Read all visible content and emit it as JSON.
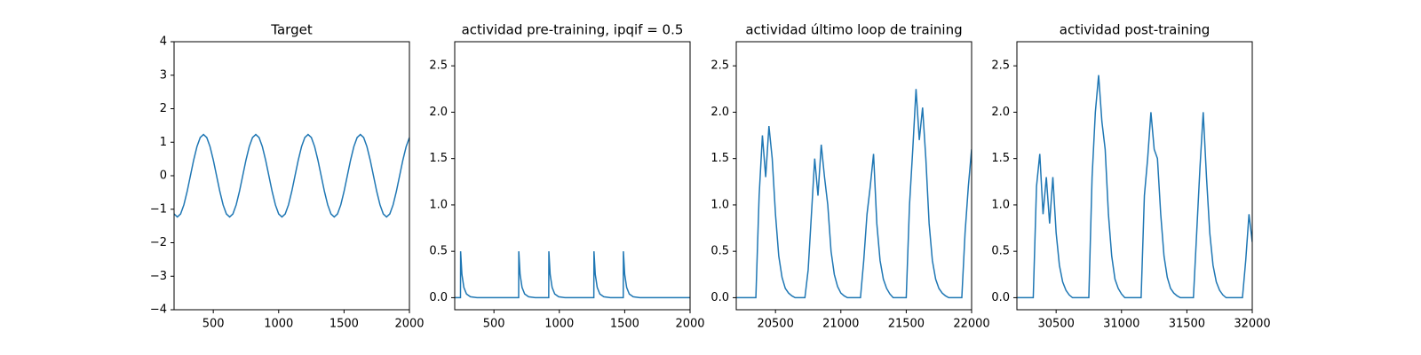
{
  "chart_data": [
    {
      "type": "line",
      "title": "Target",
      "color": "#1f77b4",
      "x": [
        200,
        225,
        250,
        275,
        300,
        325,
        350,
        375,
        400,
        425,
        450,
        475,
        500,
        525,
        550,
        575,
        600,
        625,
        650,
        675,
        700,
        725,
        750,
        775,
        800,
        825,
        850,
        875,
        900,
        925,
        950,
        975,
        1000,
        1025,
        1050,
        1075,
        1100,
        1125,
        1150,
        1175,
        1200,
        1225,
        1250,
        1275,
        1300,
        1325,
        1350,
        1375,
        1400,
        1425,
        1450,
        1475,
        1500,
        1525,
        1550,
        1575,
        1600,
        1625,
        1650,
        1675,
        1700,
        1725,
        1750,
        1775,
        1800,
        1825,
        1850,
        1875,
        1900,
        1925,
        1950,
        1975,
        2000
      ],
      "values": [
        -1.14,
        -1.23,
        -1.14,
        -0.87,
        -0.47,
        0,
        0.47,
        0.87,
        1.14,
        1.23,
        1.14,
        0.87,
        0.47,
        0,
        -0.47,
        -0.87,
        -1.14,
        -1.23,
        -1.14,
        -0.87,
        -0.47,
        0,
        0.47,
        0.87,
        1.14,
        1.23,
        1.14,
        0.87,
        0.47,
        0,
        -0.47,
        -0.87,
        -1.14,
        -1.23,
        -1.14,
        -0.87,
        -0.47,
        0,
        0.47,
        0.87,
        1.14,
        1.23,
        1.14,
        0.87,
        0.47,
        0,
        -0.47,
        -0.87,
        -1.14,
        -1.23,
        -1.14,
        -0.87,
        -0.47,
        0,
        0.47,
        0.87,
        1.14,
        1.23,
        1.14,
        0.87,
        0.47,
        0,
        -0.47,
        -0.87,
        -1.14,
        -1.23,
        -1.14,
        -0.87,
        -0.47,
        0,
        0.47,
        0.87,
        1.14
      ],
      "xlim": [
        200,
        2000
      ],
      "xticks": [
        500,
        1000,
        1500,
        2000
      ],
      "ylim": [
        -4,
        4
      ],
      "yticks": [
        {
          "value": -4,
          "label": "−4"
        },
        {
          "value": -3,
          "label": "−3"
        },
        {
          "value": -2,
          "label": "−2"
        },
        {
          "value": -1,
          "label": "−1"
        },
        0,
        1,
        2,
        3,
        4
      ]
    },
    {
      "type": "line",
      "title": "actividad pre-training, ipqif = 0.5",
      "color": "#1f77b4",
      "x": [
        200,
        244,
        245,
        255,
        270,
        290,
        320,
        370,
        689,
        690,
        700,
        715,
        735,
        765,
        815,
        919,
        920,
        930,
        945,
        965,
        995,
        1045,
        1264,
        1265,
        1275,
        1290,
        1310,
        1340,
        1390,
        1489,
        1490,
        1500,
        1515,
        1535,
        1565,
        1615,
        2000
      ],
      "values": [
        0,
        0,
        0.5,
        0.25,
        0.11,
        0.04,
        0.01,
        0,
        0,
        0.5,
        0.25,
        0.11,
        0.04,
        0.01,
        0,
        0,
        0.5,
        0.25,
        0.11,
        0.04,
        0.01,
        0,
        0,
        0.5,
        0.25,
        0.11,
        0.04,
        0.01,
        0,
        0,
        0.5,
        0.25,
        0.11,
        0.04,
        0.01,
        0,
        0
      ],
      "xlim": [
        200,
        2000
      ],
      "xticks": [
        500,
        1000,
        1500,
        2000
      ],
      "ylim": [
        -0.13,
        2.76
      ],
      "yticks": [
        {
          "value": 0,
          "label": "0.0"
        },
        0.5,
        {
          "value": 1,
          "label": "1.0"
        },
        1.5,
        {
          "value": 2,
          "label": "2.0"
        },
        2.5
      ]
    },
    {
      "type": "line",
      "title": "actividad último loop de training",
      "color": "#1f77b4",
      "x": [
        20200,
        20225,
        20250,
        20275,
        20300,
        20325,
        20350,
        20375,
        20400,
        20425,
        20450,
        20475,
        20500,
        20525,
        20550,
        20575,
        20600,
        20625,
        20650,
        20675,
        20700,
        20725,
        20750,
        20775,
        20800,
        20825,
        20850,
        20875,
        20900,
        20925,
        20950,
        20975,
        21000,
        21025,
        21050,
        21075,
        21100,
        21125,
        21150,
        21175,
        21200,
        21225,
        21250,
        21275,
        21300,
        21325,
        21350,
        21375,
        21400,
        21425,
        21450,
        21475,
        21500,
        21525,
        21550,
        21575,
        21600,
        21625,
        21650,
        21675,
        21700,
        21725,
        21750,
        21775,
        21800,
        21825,
        21850,
        21875,
        21900,
        21925,
        21950,
        21975,
        22000
      ],
      "values": [
        0,
        0,
        0,
        0,
        0,
        0,
        0,
        1.1,
        1.75,
        1.3,
        1.85,
        1.5,
        0.9,
        0.45,
        0.22,
        0.1,
        0.05,
        0.02,
        0,
        0,
        0,
        0,
        0.3,
        0.9,
        1.5,
        1.1,
        1.65,
        1.3,
        1.0,
        0.5,
        0.25,
        0.12,
        0.05,
        0.02,
        0,
        0,
        0,
        0,
        0,
        0.4,
        0.9,
        1.2,
        1.55,
        0.8,
        0.4,
        0.2,
        0.1,
        0.04,
        0,
        0,
        0,
        0,
        0,
        1.0,
        1.6,
        2.25,
        1.7,
        2.05,
        1.5,
        0.8,
        0.4,
        0.2,
        0.1,
        0.05,
        0.02,
        0,
        0,
        0,
        0,
        0,
        0.7,
        1.2,
        1.6
      ],
      "xlim": [
        20200,
        22000
      ],
      "xticks": [
        20500,
        21000,
        21500,
        22000
      ],
      "ylim": [
        -0.13,
        2.76
      ],
      "yticks": [
        {
          "value": 0,
          "label": "0.0"
        },
        0.5,
        {
          "value": 1,
          "label": "1.0"
        },
        1.5,
        {
          "value": 2,
          "label": "2.0"
        },
        2.5
      ]
    },
    {
      "type": "line",
      "title": "actividad post-training",
      "color": "#1f77b4",
      "x": [
        30200,
        30225,
        30250,
        30275,
        30300,
        30325,
        30350,
        30375,
        30400,
        30425,
        30450,
        30475,
        30500,
        30525,
        30550,
        30575,
        30600,
        30625,
        30650,
        30675,
        30700,
        30725,
        30750,
        30775,
        30800,
        30825,
        30850,
        30875,
        30900,
        30925,
        30950,
        30975,
        31000,
        31025,
        31050,
        31075,
        31100,
        31125,
        31150,
        31175,
        31200,
        31225,
        31250,
        31275,
        31300,
        31325,
        31350,
        31375,
        31400,
        31425,
        31450,
        31475,
        31500,
        31525,
        31550,
        31575,
        31600,
        31625,
        31650,
        31675,
        31700,
        31725,
        31750,
        31775,
        31800,
        31825,
        31850,
        31875,
        31900,
        31925,
        31950,
        31975,
        32000
      ],
      "values": [
        0,
        0,
        0,
        0,
        0,
        0,
        1.2,
        1.55,
        0.9,
        1.3,
        0.8,
        1.3,
        0.7,
        0.35,
        0.17,
        0.08,
        0.03,
        0,
        0,
        0,
        0,
        0,
        0,
        1.3,
        2.0,
        2.4,
        1.9,
        1.6,
        0.9,
        0.45,
        0.2,
        0.1,
        0.04,
        0,
        0,
        0,
        0,
        0,
        0,
        1.1,
        1.5,
        2.0,
        1.6,
        1.5,
        0.9,
        0.45,
        0.22,
        0.1,
        0.05,
        0.02,
        0,
        0,
        0,
        0,
        0,
        0.7,
        1.4,
        2.0,
        1.3,
        0.7,
        0.35,
        0.17,
        0.08,
        0.03,
        0,
        0,
        0,
        0,
        0,
        0,
        0.4,
        0.9,
        0.6
      ],
      "xlim": [
        30200,
        32000
      ],
      "xticks": [
        30500,
        31000,
        31500,
        32000
      ],
      "ylim": [
        -0.13,
        2.76
      ],
      "yticks": [
        {
          "value": 0,
          "label": "0.0"
        },
        0.5,
        {
          "value": 1,
          "label": "1.0"
        },
        1.5,
        {
          "value": 2,
          "label": "2.0"
        },
        2.5
      ]
    }
  ]
}
